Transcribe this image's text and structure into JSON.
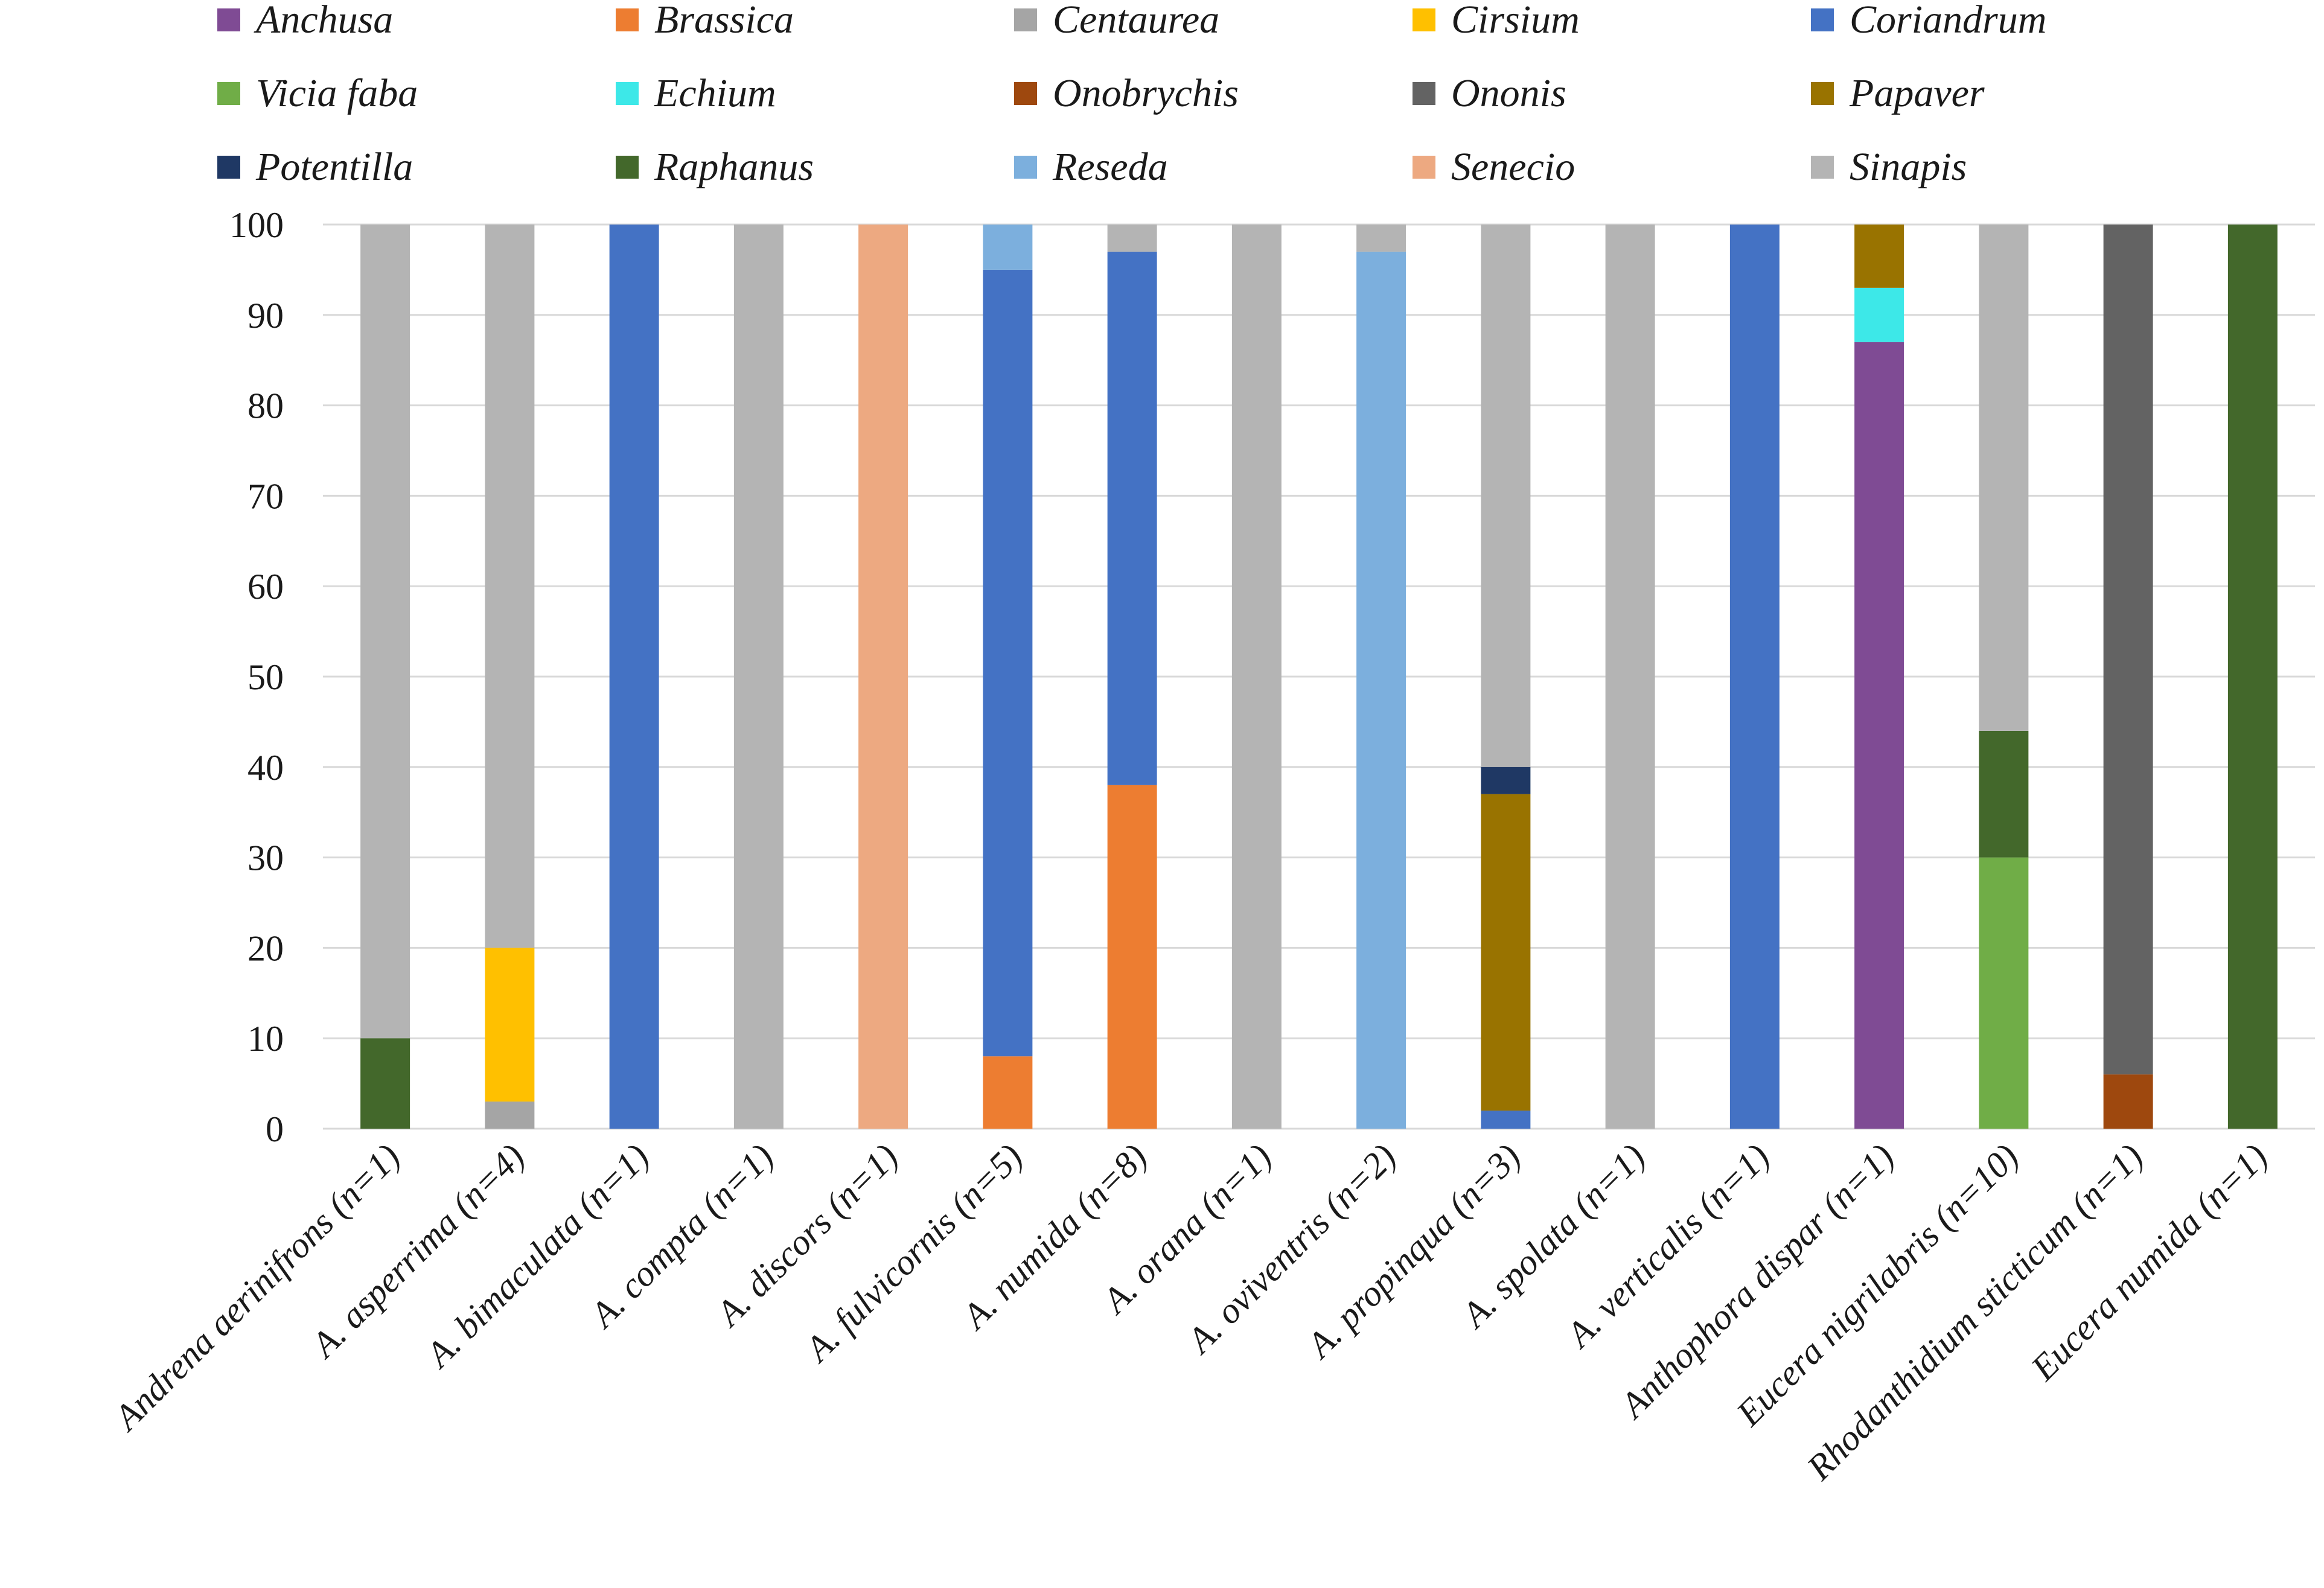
{
  "chart_data": {
    "type": "bar",
    "stacked": true,
    "title": "",
    "xlabel": "",
    "ylabel": "",
    "ylim": [
      0,
      100
    ],
    "yticks": [
      "0",
      "10",
      "20",
      "30",
      "40",
      "50",
      "60",
      "70",
      "80",
      "90",
      "100"
    ],
    "legend_position": "top",
    "categories": [
      "Andrena aerinifrons (n=1)",
      "A. asperrima (n=4)",
      "A. bimaculata (n=1)",
      "A. compta (n=1)",
      "A. discors (n=1)",
      "A. fulvicornis (n=5)",
      "A. numida (n=8)",
      "A. orana (n=1)",
      "A. oviventris (n=2)",
      "A. propinqua (n=3)",
      "A. spolata (n=1)",
      "A. verticalis (n=1)",
      "Anthophora dispar (n=1)",
      "Eucera nigrilabris (n=10)",
      "Rhodanthidium sticticum (n=1)",
      "Eucera numida (n=1)"
    ],
    "series": [
      {
        "name": "Anchusa",
        "color": "#7f4b94",
        "values": [
          0,
          0,
          0,
          0,
          0,
          0,
          0,
          0,
          0,
          0,
          0,
          0,
          87,
          0,
          0,
          0
        ]
      },
      {
        "name": "Brassica",
        "color": "#ed7d31",
        "values": [
          0,
          0,
          0,
          0,
          0,
          8,
          38,
          0,
          0,
          0,
          0,
          0,
          0,
          0,
          0,
          0
        ]
      },
      {
        "name": "Centaurea",
        "color": "#a5a5a5",
        "values": [
          0,
          3,
          0,
          0,
          0,
          0,
          0,
          0,
          0,
          0,
          0,
          0,
          0,
          0,
          0,
          0
        ]
      },
      {
        "name": "Cirsium",
        "color": "#ffc000",
        "values": [
          0,
          17,
          0,
          0,
          0,
          0,
          0,
          0,
          0,
          0,
          0,
          0,
          0,
          0,
          0,
          0
        ]
      },
      {
        "name": "Coriandrum",
        "color": "#4472c4",
        "values": [
          0,
          0,
          100,
          0,
          0,
          87,
          59,
          0,
          0,
          2,
          0,
          100,
          0,
          0,
          0,
          0
        ]
      },
      {
        "name": "Vicia faba",
        "color": "#70ad47",
        "values": [
          0,
          0,
          0,
          0,
          0,
          0,
          0,
          0,
          0,
          0,
          0,
          0,
          0,
          30,
          0,
          0
        ]
      },
      {
        "name": "Echium",
        "color": "#3de8e8",
        "values": [
          0,
          0,
          0,
          0,
          0,
          0,
          0,
          0,
          0,
          0,
          0,
          0,
          6,
          0,
          0,
          0
        ]
      },
      {
        "name": "Onobrychis",
        "color": "#9e480e",
        "values": [
          0,
          0,
          0,
          0,
          0,
          0,
          0,
          0,
          0,
          0,
          0,
          0,
          0,
          0,
          6,
          0
        ]
      },
      {
        "name": "Ononis",
        "color": "#636363",
        "values": [
          0,
          0,
          0,
          0,
          0,
          0,
          0,
          0,
          0,
          0,
          0,
          0,
          0,
          0,
          94,
          0
        ]
      },
      {
        "name": "Papaver",
        "color": "#997300",
        "values": [
          0,
          0,
          0,
          0,
          0,
          0,
          0,
          0,
          0,
          35,
          0,
          0,
          7,
          0,
          0,
          0
        ]
      },
      {
        "name": "Potentilla",
        "color": "#1f3864",
        "values": [
          0,
          0,
          0,
          0,
          0,
          0,
          0,
          0,
          0,
          3,
          0,
          0,
          0,
          0,
          0,
          0
        ]
      },
      {
        "name": "Raphanus",
        "color": "#43682b",
        "values": [
          10,
          0,
          0,
          0,
          0,
          0,
          0,
          0,
          0,
          0,
          0,
          0,
          0,
          14,
          0,
          100
        ]
      },
      {
        "name": "Reseda",
        "color": "#7cafdd",
        "values": [
          0,
          0,
          0,
          0,
          0,
          5,
          0,
          0,
          97,
          0,
          0,
          0,
          0,
          0,
          0,
          0
        ]
      },
      {
        "name": "Senecio",
        "color": "#eda981",
        "values": [
          0,
          0,
          0,
          0,
          100,
          0,
          0,
          0,
          0,
          0,
          0,
          0,
          0,
          0,
          0,
          0
        ]
      },
      {
        "name": "Sinapis",
        "color": "#b4b4b4",
        "values": [
          90,
          80,
          0,
          100,
          0,
          0,
          3,
          100,
          3,
          60,
          100,
          0,
          0,
          56,
          0,
          0
        ]
      }
    ]
  }
}
